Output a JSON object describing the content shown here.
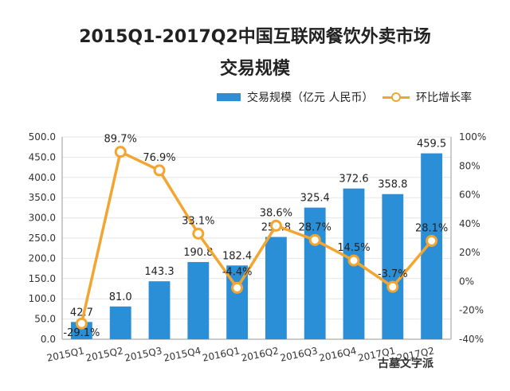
{
  "title_line1": "2015Q1-2017Q2中国互联网餐饮外卖市场",
  "title_line2": "交易规模",
  "legend": {
    "bar_label": "交易规模（亿元 人民币）",
    "line_label": "环比增长率"
  },
  "colors": {
    "bar": "#2a8fd6",
    "line": "#f3a531",
    "grid": "#e6e6e6",
    "axis_text": "#333333"
  },
  "watermark_text": "古墓文字派",
  "chart_data": {
    "type": "bar+line",
    "categories": [
      "2015Q1",
      "2015Q2",
      "2015Q3",
      "2015Q4",
      "2016Q1",
      "2016Q2",
      "2016Q3",
      "2016Q4",
      "2017Q1",
      "2017Q2"
    ],
    "series": [
      {
        "name": "交易规模（亿元 人民币）",
        "type": "bar",
        "axis": "left",
        "values": [
          42.7,
          81.0,
          143.3,
          190.8,
          182.4,
          252.8,
          325.4,
          372.6,
          358.8,
          459.5
        ],
        "labels": [
          "42.7",
          "81.0",
          "143.3",
          "190.8",
          "182.4",
          "252.8",
          "325.4",
          "372.6",
          "358.8",
          "459.5"
        ]
      },
      {
        "name": "环比增长率",
        "type": "line",
        "axis": "right",
        "values": [
          -29.1,
          89.7,
          76.9,
          33.1,
          -4.4,
          38.6,
          28.7,
          14.5,
          -3.7,
          28.1
        ],
        "labels": [
          "-29.1%",
          "89.7%",
          "76.9%",
          "33.1%",
          "-4.4%",
          "38.6%",
          "28.7%",
          "14.5%",
          "-3.7%",
          "28.1%"
        ]
      }
    ],
    "y_left": {
      "ylim": [
        0,
        500
      ],
      "ticks": [
        "0.0",
        "50.0",
        "100.0",
        "150.0",
        "200.0",
        "250.0",
        "300.0",
        "350.0",
        "400.0",
        "450.0",
        "500.0"
      ]
    },
    "y_right": {
      "ylim": [
        -40,
        100
      ],
      "ticks": [
        "-40%",
        "-20%",
        "0%",
        "20%",
        "40%",
        "60%",
        "80%",
        "100%"
      ]
    },
    "grid": true,
    "legend_position": "top"
  }
}
